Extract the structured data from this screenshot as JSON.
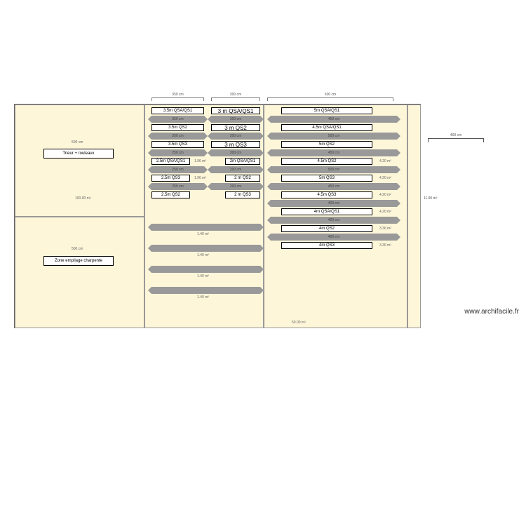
{
  "watermark": "www.archifacile.fr",
  "isolated_dim": "400 cm",
  "side_dim": "11.90 m²",
  "rooms": {
    "top_left": {
      "label": "Trieur + rouleaux",
      "dim_top": "500 cm",
      "area": "100.00 m²"
    },
    "bottom_left": {
      "label": "Zone empilage charpente",
      "dim_left": "500 cm"
    }
  },
  "top_brackets": {
    "colA": "350 cm",
    "colB": "300 cm",
    "colC": "500 cm"
  },
  "colA": [
    {
      "box": "3.5m QSA/QS1",
      "band": "350 cm"
    },
    {
      "box": "3.5m QS2",
      "band": "350 cm"
    },
    {
      "box": "3.5m QS3",
      "band": "250 cm"
    },
    {
      "box": "2.5m QSA/QS1",
      "band": "250 cm",
      "sub_band": "1.96 m²"
    },
    {
      "box": "2.5m QS3",
      "band": "250 cm",
      "sub_band": "1.96 m²"
    },
    {
      "box": "2.5m QS2",
      "band": ""
    }
  ],
  "colB": [
    {
      "box": "3 m QSA/QS1",
      "band": "300 cm"
    },
    {
      "box": "3 m QS2",
      "band": "300 cm"
    },
    {
      "box": "3 m QS3",
      "band": "300 cm"
    },
    {
      "box": "2m QSA/QS1",
      "band": "200 cm"
    },
    {
      "box": "2 m QS2",
      "band": "200 cm"
    },
    {
      "box": "2 m QS3",
      "band": ""
    }
  ],
  "colC": [
    {
      "box": "5m QSA/QS1",
      "band": "450 cm"
    },
    {
      "box": "4.5m QSA/QS1",
      "band": "500 cm"
    },
    {
      "box": "5m QS2",
      "band": "450 cm"
    },
    {
      "box": "4.5m QS2",
      "band": "500 cm",
      "sub": "4.20 m²"
    },
    {
      "box": "5m QS3",
      "band": "450 cm",
      "sub": "4.20 m²"
    },
    {
      "box": "4.5m QS3",
      "band": "400 cm",
      "sub": "4.20 m²"
    },
    {
      "box": "4m QSA/QS1",
      "band": "400 cm",
      "sub": "4.20 m²"
    },
    {
      "box": "4m QS2",
      "band": "400 cm",
      "sub": "3.36 m²"
    },
    {
      "box": "4m QS3",
      "band": "",
      "sub": "3.36 m²"
    }
  ],
  "bottom_bands_colAB": [
    "1.40 m²",
    "1.40 m²",
    "1.40 m²",
    "1.40 m²"
  ],
  "bottom_area": "50.00 m²",
  "colors": {
    "room_fill": "#fdf6d9",
    "band": "#999999",
    "border": "#666666"
  }
}
